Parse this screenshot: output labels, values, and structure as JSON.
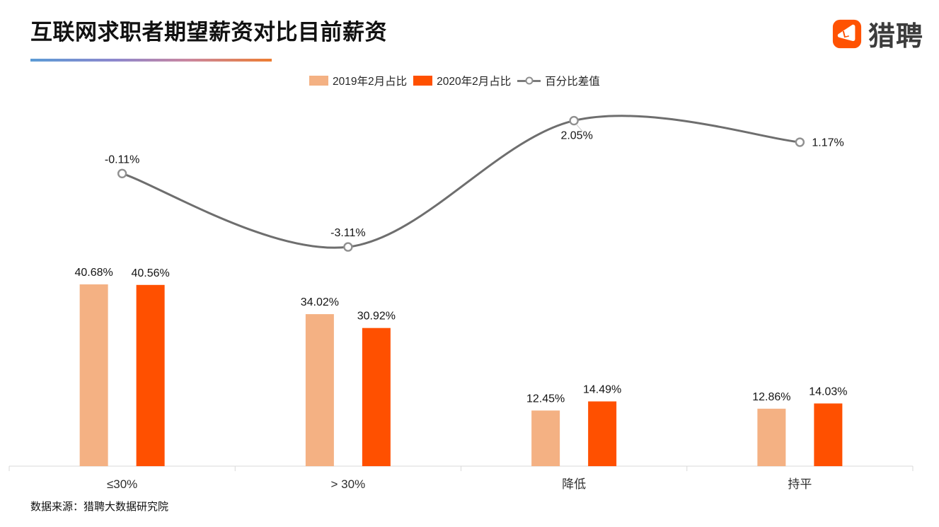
{
  "header": {
    "title": "互联网求职者期望薪资对比目前薪资",
    "logo_text": "猎聘"
  },
  "legend": {
    "items": [
      {
        "label": "2019年2月占比",
        "swatch": "light-orange"
      },
      {
        "label": "2020年2月占比",
        "swatch": "dark-orange"
      },
      {
        "label": "百分比差值",
        "swatch": "line-marker"
      }
    ]
  },
  "chart_data": {
    "type": "bar",
    "subtype": "grouped-bars-with-smoothed-line",
    "title": "互联网求职者期望薪资对比目前薪资",
    "categories": [
      "≤30%",
      "> 30%",
      "降低",
      "持平"
    ],
    "series": [
      {
        "name": "2019年2月占比",
        "type": "bar",
        "color": "#F4B183",
        "values": [
          40.68,
          34.02,
          12.45,
          12.86
        ],
        "labels": [
          "40.68%",
          "34.02%",
          "12.45%",
          "12.86%"
        ]
      },
      {
        "name": "2020年2月占比",
        "type": "bar",
        "color": "#FF5000",
        "values": [
          40.56,
          30.92,
          14.49,
          14.03
        ],
        "labels": [
          "40.56%",
          "30.92%",
          "14.49%",
          "14.03%"
        ]
      },
      {
        "name": "百分比差值",
        "type": "line",
        "color": "#6E6E6E",
        "marker": "open-circle",
        "marker_stroke": "#909090",
        "values": [
          -0.11,
          -3.11,
          2.05,
          1.17
        ],
        "labels": [
          "-0.11%",
          "-3.11%",
          "2.05%",
          "1.17%"
        ],
        "label_positions": [
          "above",
          "above",
          "below",
          "right"
        ]
      }
    ],
    "xlabel": "",
    "ylabel": "",
    "axis": {
      "show_y_axis": false,
      "baseline_color": "#D9D9D9",
      "grid": "off"
    },
    "legend_position": "top-center",
    "colors": {
      "bar_2019": "#F4B183",
      "bar_2020": "#FF5000",
      "diff_line": "#6E6E6E",
      "axis": "#D9D9D9",
      "text": "#141414",
      "brand_orange": "#FF5202"
    }
  },
  "footer": {
    "source": "数据来源：猎聘大数据研究院"
  }
}
